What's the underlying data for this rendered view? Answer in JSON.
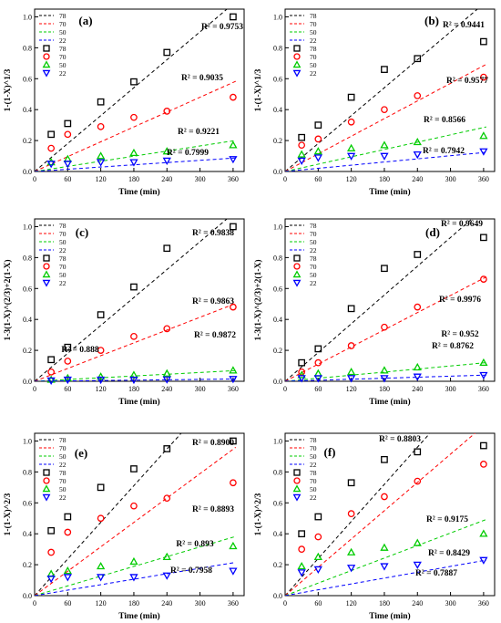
{
  "figure": {
    "series_names": [
      "78",
      "70",
      "50",
      "22"
    ],
    "series_colors": [
      "#000000",
      "#ff0000",
      "#00cc00",
      "#0000ff"
    ],
    "marker_shapes": [
      "square",
      "circle",
      "triangle-up",
      "triangle-down"
    ],
    "line_style": "dashed",
    "x_values": [
      30,
      60,
      120,
      180,
      240,
      360
    ]
  },
  "chart_data": [
    {
      "type": "scatter",
      "panel_label": "(a)",
      "xlabel": "Time (min)",
      "ylabel": "1-(1-X)^1/3",
      "xlim": [
        0,
        380
      ],
      "ylim": [
        0,
        1.05
      ],
      "xticks": [
        0,
        60,
        120,
        180,
        240,
        300,
        360
      ],
      "yticks": [
        0.0,
        0.2,
        0.4,
        0.6,
        0.8,
        1.0
      ],
      "legend_position": "top-left",
      "series": [
        {
          "name": "78",
          "x": [
            30,
            60,
            120,
            180,
            240,
            360
          ],
          "y": [
            0.24,
            0.31,
            0.45,
            0.58,
            0.77,
            1.0
          ],
          "fit_slope": 0.00301,
          "r2_label": "R² = 0.9753"
        },
        {
          "name": "70",
          "x": [
            30,
            60,
            120,
            180,
            240,
            360
          ],
          "y": [
            0.15,
            0.24,
            0.29,
            0.35,
            0.39,
            0.48
          ],
          "fit_slope": 0.0016,
          "r2_label": "R² = 0.9035"
        },
        {
          "name": "50",
          "x": [
            30,
            60,
            120,
            180,
            240,
            360
          ],
          "y": [
            0.06,
            0.08,
            0.1,
            0.12,
            0.13,
            0.17
          ],
          "fit_slope": 0.00055,
          "r2_label": "R² = 0.9221"
        },
        {
          "name": "22",
          "x": [
            30,
            60,
            120,
            180,
            240,
            360
          ],
          "y": [
            0.05,
            0.05,
            0.06,
            0.06,
            0.07,
            0.08
          ],
          "fit_slope": 0.00024,
          "r2_label": "R² = 0.7999"
        }
      ]
    },
    {
      "type": "scatter",
      "panel_label": "(b)",
      "xlabel": "Time (min)",
      "ylabel": "1-(1-X)^1/3",
      "xlim": [
        0,
        380
      ],
      "ylim": [
        0,
        1.05
      ],
      "xticks": [
        0,
        60,
        120,
        180,
        240,
        300,
        360
      ],
      "yticks": [
        0.0,
        0.2,
        0.4,
        0.6,
        0.8,
        1.0
      ],
      "legend_position": "top-left",
      "series": [
        {
          "name": "78",
          "x": [
            30,
            60,
            120,
            180,
            240,
            360
          ],
          "y": [
            0.22,
            0.3,
            0.48,
            0.66,
            0.73,
            0.84
          ],
          "fit_slope": 0.00301,
          "r2_label": "R² = 0.9441"
        },
        {
          "name": "70",
          "x": [
            30,
            60,
            120,
            180,
            240,
            360
          ],
          "y": [
            0.17,
            0.21,
            0.32,
            0.4,
            0.49,
            0.61
          ],
          "fit_slope": 0.0019,
          "r2_label": "R² = 0.9577"
        },
        {
          "name": "50",
          "x": [
            30,
            60,
            120,
            180,
            240,
            360
          ],
          "y": [
            0.11,
            0.13,
            0.15,
            0.17,
            0.19,
            0.23
          ],
          "fit_slope": 0.00079,
          "r2_label": "R² = 0.8566"
        },
        {
          "name": "22",
          "x": [
            30,
            60,
            120,
            180,
            240,
            360
          ],
          "y": [
            0.07,
            0.09,
            0.1,
            0.1,
            0.11,
            0.13
          ],
          "fit_slope": 0.00034,
          "r2_label": "R² = 0.7942"
        }
      ]
    },
    {
      "type": "scatter",
      "panel_label": "(c)",
      "xlabel": "Time (min)",
      "ylabel": "1-3(1-X)^(2/3)+2(1-X)",
      "xlim": [
        0,
        380
      ],
      "ylim": [
        0,
        1.05
      ],
      "xticks": [
        0,
        60,
        120,
        180,
        240,
        300,
        360
      ],
      "yticks": [
        0.0,
        0.2,
        0.4,
        0.6,
        0.8,
        1.0
      ],
      "legend_position": "top-left",
      "series": [
        {
          "name": "78",
          "x": [
            30,
            60,
            120,
            180,
            240,
            360
          ],
          "y": [
            0.14,
            0.22,
            0.43,
            0.61,
            0.86,
            1.0
          ],
          "fit_slope": 0.00301,
          "r2_label": "R² = 0.9838"
        },
        {
          "name": "70",
          "x": [
            30,
            60,
            120,
            180,
            240,
            360
          ],
          "y": [
            0.06,
            0.13,
            0.2,
            0.29,
            0.34,
            0.48
          ],
          "fit_slope": 0.00138,
          "r2_label": "R² = 0.9863"
        },
        {
          "name": "50",
          "x": [
            30,
            60,
            120,
            180,
            240,
            360
          ],
          "y": [
            0.01,
            0.02,
            0.03,
            0.04,
            0.05,
            0.07
          ],
          "fit_slope": 0.00019,
          "r2_label": "R² = 0.9872"
        },
        {
          "name": "22",
          "x": [
            30,
            60,
            120,
            180,
            240,
            360
          ],
          "y": [
            0.005,
            0.01,
            0.01,
            0.01,
            0.012,
            0.015
          ],
          "fit_slope": 4e-05,
          "r2_label": "R² = 0.888"
        }
      ]
    },
    {
      "type": "scatter",
      "panel_label": "(d)",
      "xlabel": "Time (min)",
      "ylabel": "1-3(1-X)^(2/3)+2(1-X)",
      "xlim": [
        0,
        380
      ],
      "ylim": [
        0,
        1.05
      ],
      "xticks": [
        0,
        60,
        120,
        180,
        240,
        300,
        360
      ],
      "yticks": [
        0.0,
        0.2,
        0.4,
        0.6,
        0.8,
        1.0
      ],
      "legend_position": "top-left",
      "series": [
        {
          "name": "78",
          "x": [
            30,
            60,
            120,
            180,
            240,
            360
          ],
          "y": [
            0.12,
            0.21,
            0.47,
            0.73,
            0.82,
            0.93
          ],
          "fit_slope": 0.0031,
          "r2_label": "R² = 0.9649"
        },
        {
          "name": "70",
          "x": [
            30,
            60,
            120,
            180,
            240,
            360
          ],
          "y": [
            0.06,
            0.12,
            0.23,
            0.35,
            0.48,
            0.66
          ],
          "fit_slope": 0.00185,
          "r2_label": "R² = 0.9976"
        },
        {
          "name": "50",
          "x": [
            30,
            60,
            120,
            180,
            240,
            360
          ],
          "y": [
            0.04,
            0.05,
            0.06,
            0.07,
            0.09,
            0.12
          ],
          "fit_slope": 0.00033,
          "r2_label": "R² = 0.952"
        },
        {
          "name": "22",
          "x": [
            30,
            60,
            120,
            180,
            240,
            360
          ],
          "y": [
            0.02,
            0.02,
            0.02,
            0.02,
            0.03,
            0.04
          ],
          "fit_slope": 0.00011,
          "r2_label": "R² = 0.8762"
        }
      ]
    },
    {
      "type": "scatter",
      "panel_label": "(e)",
      "xlabel": "Time (min)",
      "ylabel": "1-(1-X)^2/3",
      "xlim": [
        0,
        380
      ],
      "ylim": [
        0,
        1.05
      ],
      "xticks": [
        0,
        60,
        120,
        180,
        240,
        300,
        360
      ],
      "yticks": [
        0.0,
        0.2,
        0.4,
        0.6,
        0.8,
        1.0
      ],
      "legend_position": "top-left",
      "series": [
        {
          "name": "78",
          "x": [
            30,
            60,
            120,
            180,
            240,
            360
          ],
          "y": [
            0.42,
            0.51,
            0.7,
            0.82,
            0.95,
            1.0
          ],
          "fit_slope": 0.00395,
          "r2_label": "R² = 0.8900"
        },
        {
          "name": "70",
          "x": [
            30,
            60,
            120,
            180,
            240,
            360
          ],
          "y": [
            0.28,
            0.41,
            0.5,
            0.58,
            0.63,
            0.73
          ],
          "fit_slope": 0.00263,
          "r2_label": "R² = 0.8893"
        },
        {
          "name": "50",
          "x": [
            30,
            60,
            120,
            180,
            240,
            360
          ],
          "y": [
            0.14,
            0.16,
            0.19,
            0.22,
            0.25,
            0.32
          ],
          "fit_slope": 0.00105,
          "r2_label": "R² = 0.893"
        },
        {
          "name": "22",
          "x": [
            30,
            60,
            120,
            180,
            240,
            360
          ],
          "y": [
            0.11,
            0.12,
            0.12,
            0.12,
            0.13,
            0.16
          ],
          "fit_slope": 0.00059,
          "r2_label": "R² = 0.7958"
        }
      ]
    },
    {
      "type": "scatter",
      "panel_label": "(f)",
      "xlabel": "Time (min)",
      "ylabel": "1-(1-X)^2/3",
      "xlim": [
        0,
        380
      ],
      "ylim": [
        0,
        1.05
      ],
      "xticks": [
        0,
        60,
        120,
        180,
        240,
        300,
        360
      ],
      "yticks": [
        0.0,
        0.2,
        0.4,
        0.6,
        0.8,
        1.0
      ],
      "legend_position": "top-left",
      "series": [
        {
          "name": "78",
          "x": [
            30,
            60,
            120,
            180,
            240,
            360
          ],
          "y": [
            0.4,
            0.51,
            0.73,
            0.88,
            0.93,
            0.97
          ],
          "fit_slope": 0.004,
          "r2_label": "R² = 0.8803"
        },
        {
          "name": "70",
          "x": [
            30,
            60,
            120,
            180,
            240,
            360
          ],
          "y": [
            0.3,
            0.38,
            0.53,
            0.64,
            0.74,
            0.85
          ],
          "fit_slope": 0.00305,
          "r2_label": "R² = 0.9175"
        },
        {
          "name": "50",
          "x": [
            30,
            60,
            120,
            180,
            240,
            360
          ],
          "y": [
            0.19,
            0.25,
            0.28,
            0.31,
            0.34,
            0.4
          ],
          "fit_slope": 0.00135,
          "r2_label": "R² = 0.8429"
        },
        {
          "name": "22",
          "x": [
            30,
            60,
            120,
            180,
            240,
            360
          ],
          "y": [
            0.15,
            0.17,
            0.18,
            0.19,
            0.2,
            0.23
          ],
          "fit_slope": 0.00063,
          "r2_label": "R² = 0.7887"
        }
      ]
    }
  ]
}
